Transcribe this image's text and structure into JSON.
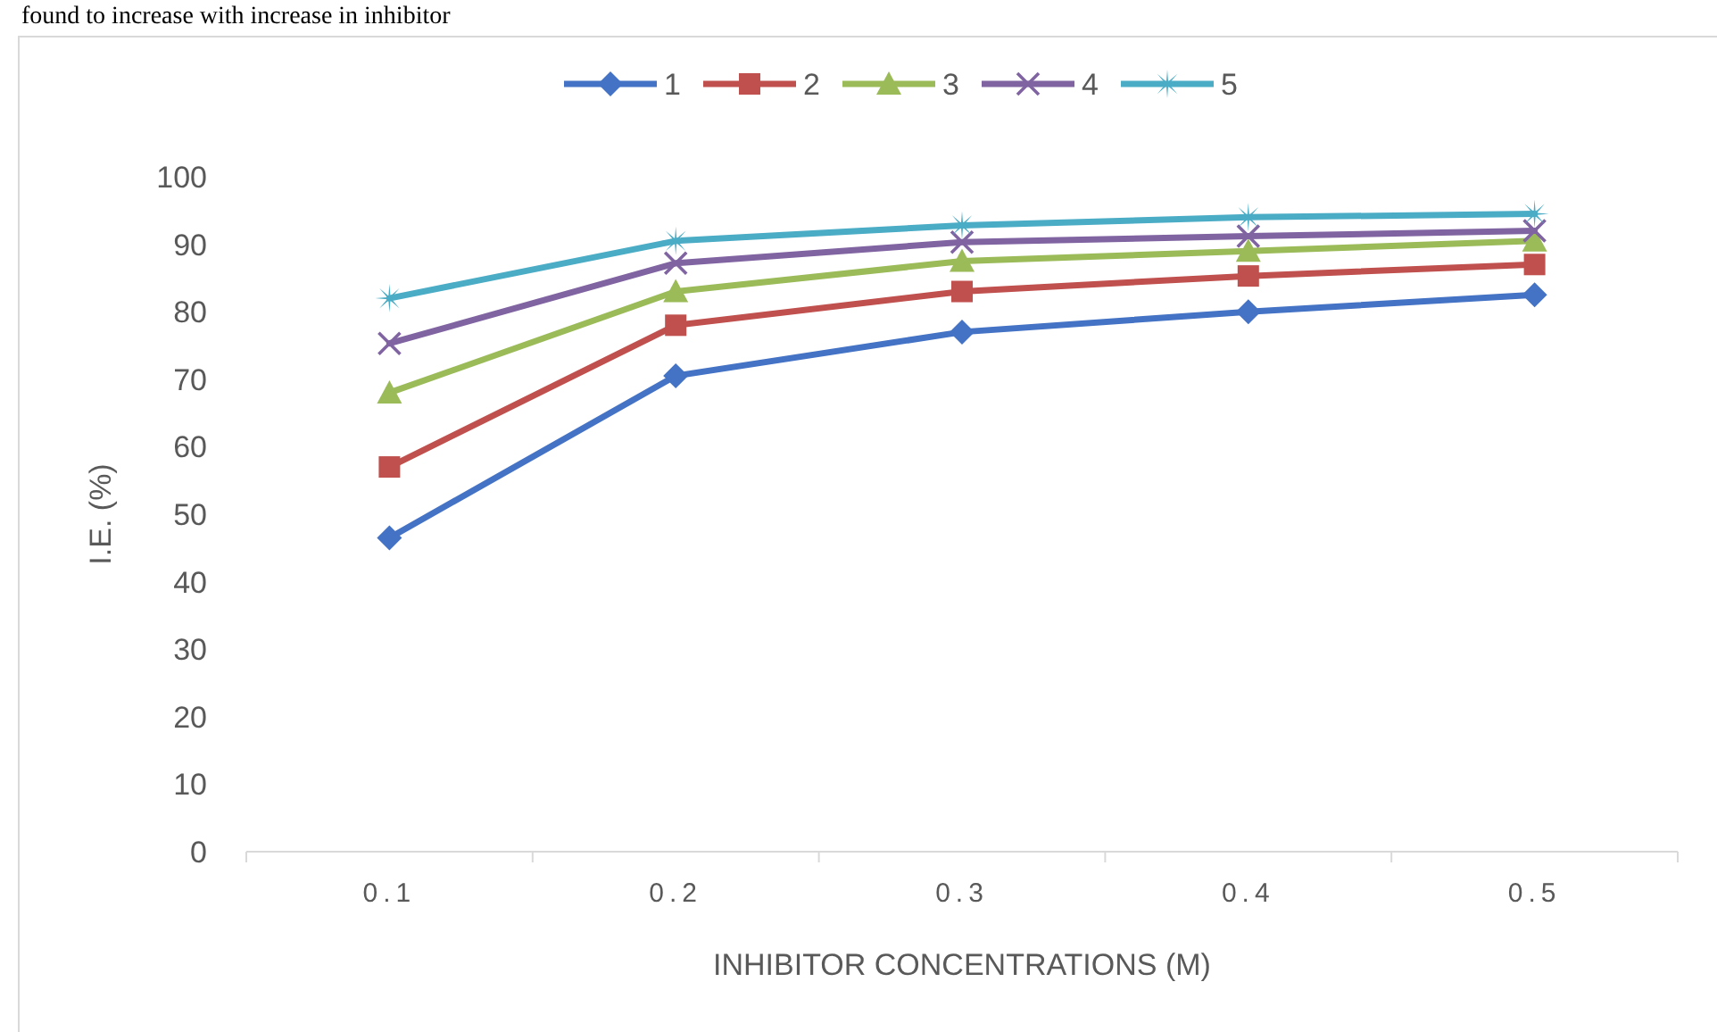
{
  "chart_data": {
    "type": "line",
    "xlabel": "INHIBITOR CONCENTRATIONS (M)",
    "ylabel": "I.E. (%)",
    "annotations": [
      "found to increase with increase in inhibitor"
    ],
    "categories": [
      "0.1",
      "0.2",
      "0.3",
      "0.4",
      "0.5"
    ],
    "ylim": [
      0,
      100
    ],
    "yticks": [
      0,
      10,
      20,
      30,
      40,
      50,
      60,
      70,
      80,
      90,
      100
    ],
    "legend": "top",
    "series": [
      {
        "name": "1",
        "color": "#4472c4",
        "marker": "diamond",
        "values": [
          46.5,
          70.5,
          77,
          80,
          82.5
        ]
      },
      {
        "name": "2",
        "color": "#c0504d",
        "marker": "square",
        "values": [
          57,
          78,
          83,
          85.3,
          87
        ]
      },
      {
        "name": "3",
        "color": "#9bbb59",
        "marker": "triangle",
        "values": [
          68,
          83,
          87.5,
          89,
          90.5
        ]
      },
      {
        "name": "4",
        "color": "#8064a2",
        "marker": "cross",
        "values": [
          75.3,
          87.2,
          90.3,
          91.2,
          92
        ]
      },
      {
        "name": "5",
        "color": "#4bacc6",
        "marker": "star",
        "values": [
          82,
          90.5,
          92.8,
          94,
          94.5
        ]
      }
    ]
  }
}
